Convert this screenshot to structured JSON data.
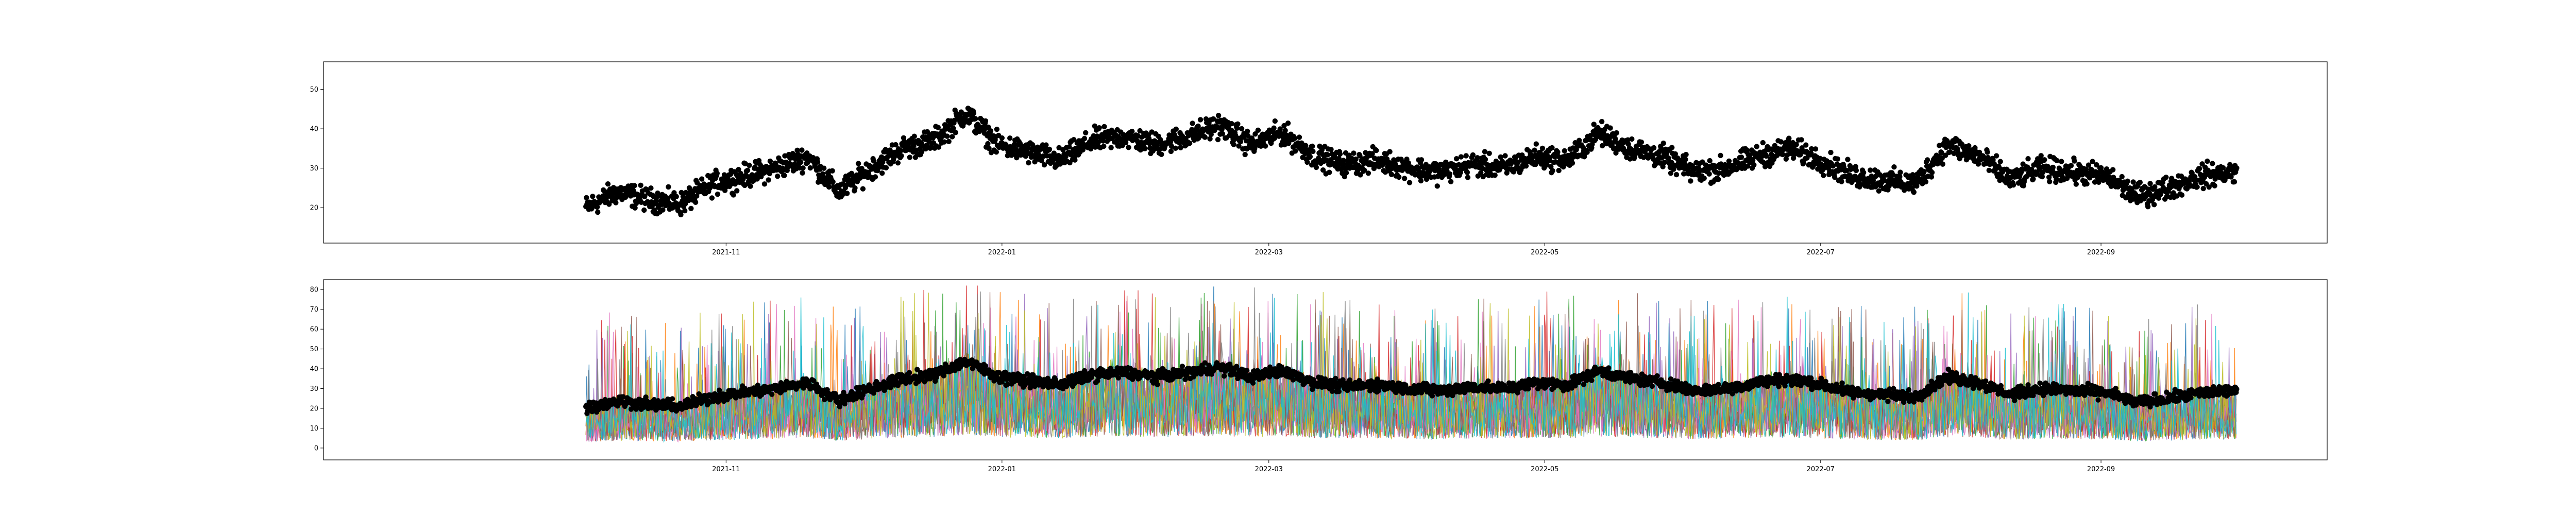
{
  "chart_data": [
    {
      "type": "scatter",
      "title": "",
      "xlabel": "",
      "ylabel": "",
      "x_range": [
        "2021-10-01",
        "2022-10-01"
      ],
      "x_ticks": [
        "2021-11",
        "2022-01",
        "2022-03",
        "2022-05",
        "2022-07",
        "2022-09"
      ],
      "y_ticks": [
        20,
        30,
        40,
        50
      ],
      "ylim": [
        11,
        57
      ],
      "grid": false,
      "marker_color": "#000000",
      "series": [
        {
          "x": [
            "2021-10-01",
            "2021-10-08",
            "2021-10-15",
            "2021-10-22",
            "2021-10-29",
            "2021-11-05",
            "2021-11-12",
            "2021-11-19",
            "2021-11-26",
            "2021-12-03",
            "2021-12-10",
            "2021-12-17",
            "2021-12-24",
            "2021-12-31",
            "2022-01-07",
            "2022-01-14",
            "2022-01-21",
            "2022-01-28",
            "2022-02-04",
            "2022-02-11",
            "2022-02-18",
            "2022-02-25",
            "2022-03-04",
            "2022-03-11",
            "2022-03-18",
            "2022-03-25",
            "2022-04-01",
            "2022-04-08",
            "2022-04-15",
            "2022-04-22",
            "2022-04-29",
            "2022-05-06",
            "2022-05-13",
            "2022-05-20",
            "2022-05-27",
            "2022-06-03",
            "2022-06-10",
            "2022-06-17",
            "2022-06-24",
            "2022-07-01",
            "2022-07-08",
            "2022-07-15",
            "2022-07-22",
            "2022-07-29",
            "2022-08-05",
            "2022-08-12",
            "2022-08-19",
            "2022-08-26",
            "2022-09-02",
            "2022-09-09",
            "2022-09-16",
            "2022-09-23",
            "2022-09-30"
          ],
          "y": [
            20,
            24,
            22,
            21,
            26,
            28,
            30,
            33,
            24,
            30,
            35,
            37,
            44,
            36,
            34,
            32,
            37,
            38,
            36,
            38,
            41,
            36,
            39,
            33,
            31,
            32,
            30,
            29,
            31,
            30,
            33,
            32,
            39,
            35,
            33,
            29,
            30,
            33,
            35,
            32,
            28,
            27,
            26,
            36,
            33,
            27,
            30,
            29,
            28,
            23,
            25,
            28,
            29
          ]
        }
      ]
    },
    {
      "type": "line",
      "title": "",
      "xlabel": "",
      "ylabel": "",
      "x_range": [
        "2021-10-01",
        "2022-10-01"
      ],
      "x_ticks": [
        "2021-11",
        "2022-01",
        "2022-03",
        "2022-05",
        "2022-07",
        "2022-09"
      ],
      "y_ticks": [
        0,
        10,
        20,
        30,
        40,
        50,
        60,
        70,
        80
      ],
      "ylim": [
        -6,
        85
      ],
      "grid": false,
      "line_colors": [
        "#1f77b4",
        "#ff7f0e",
        "#2ca02c",
        "#d62728",
        "#9467bd",
        "#8c564b",
        "#e377c2",
        "#7f7f7f",
        "#bcbd22",
        "#17becf"
      ],
      "overlay_series": {
        "marker_color": "#000000",
        "note": "same dates and values as the upper panel",
        "x": [
          "2021-10-01",
          "2021-10-08",
          "2021-10-15",
          "2021-10-22",
          "2021-10-29",
          "2021-11-05",
          "2021-11-12",
          "2021-11-19",
          "2021-11-26",
          "2021-12-03",
          "2021-12-10",
          "2021-12-17",
          "2021-12-24",
          "2021-12-31",
          "2022-01-07",
          "2022-01-14",
          "2022-01-21",
          "2022-01-28",
          "2022-02-04",
          "2022-02-11",
          "2022-02-18",
          "2022-02-25",
          "2022-03-04",
          "2022-03-11",
          "2022-03-18",
          "2022-03-25",
          "2022-04-01",
          "2022-04-08",
          "2022-04-15",
          "2022-04-22",
          "2022-04-29",
          "2022-05-06",
          "2022-05-13",
          "2022-05-20",
          "2022-05-27",
          "2022-06-03",
          "2022-06-10",
          "2022-06-17",
          "2022-06-24",
          "2022-07-01",
          "2022-07-08",
          "2022-07-15",
          "2022-07-22",
          "2022-07-29",
          "2022-08-05",
          "2022-08-12",
          "2022-08-19",
          "2022-08-26",
          "2022-09-02",
          "2022-09-09",
          "2022-09-16",
          "2022-09-23",
          "2022-09-30"
        ],
        "y": [
          20,
          24,
          22,
          21,
          26,
          28,
          30,
          33,
          24,
          30,
          35,
          37,
          44,
          36,
          34,
          32,
          37,
          38,
          36,
          38,
          41,
          36,
          39,
          33,
          31,
          32,
          30,
          29,
          31,
          30,
          33,
          32,
          39,
          35,
          33,
          29,
          30,
          33,
          35,
          32,
          28,
          27,
          26,
          36,
          33,
          27,
          30,
          29,
          28,
          23,
          25,
          28,
          29
        ]
      }
    }
  ]
}
